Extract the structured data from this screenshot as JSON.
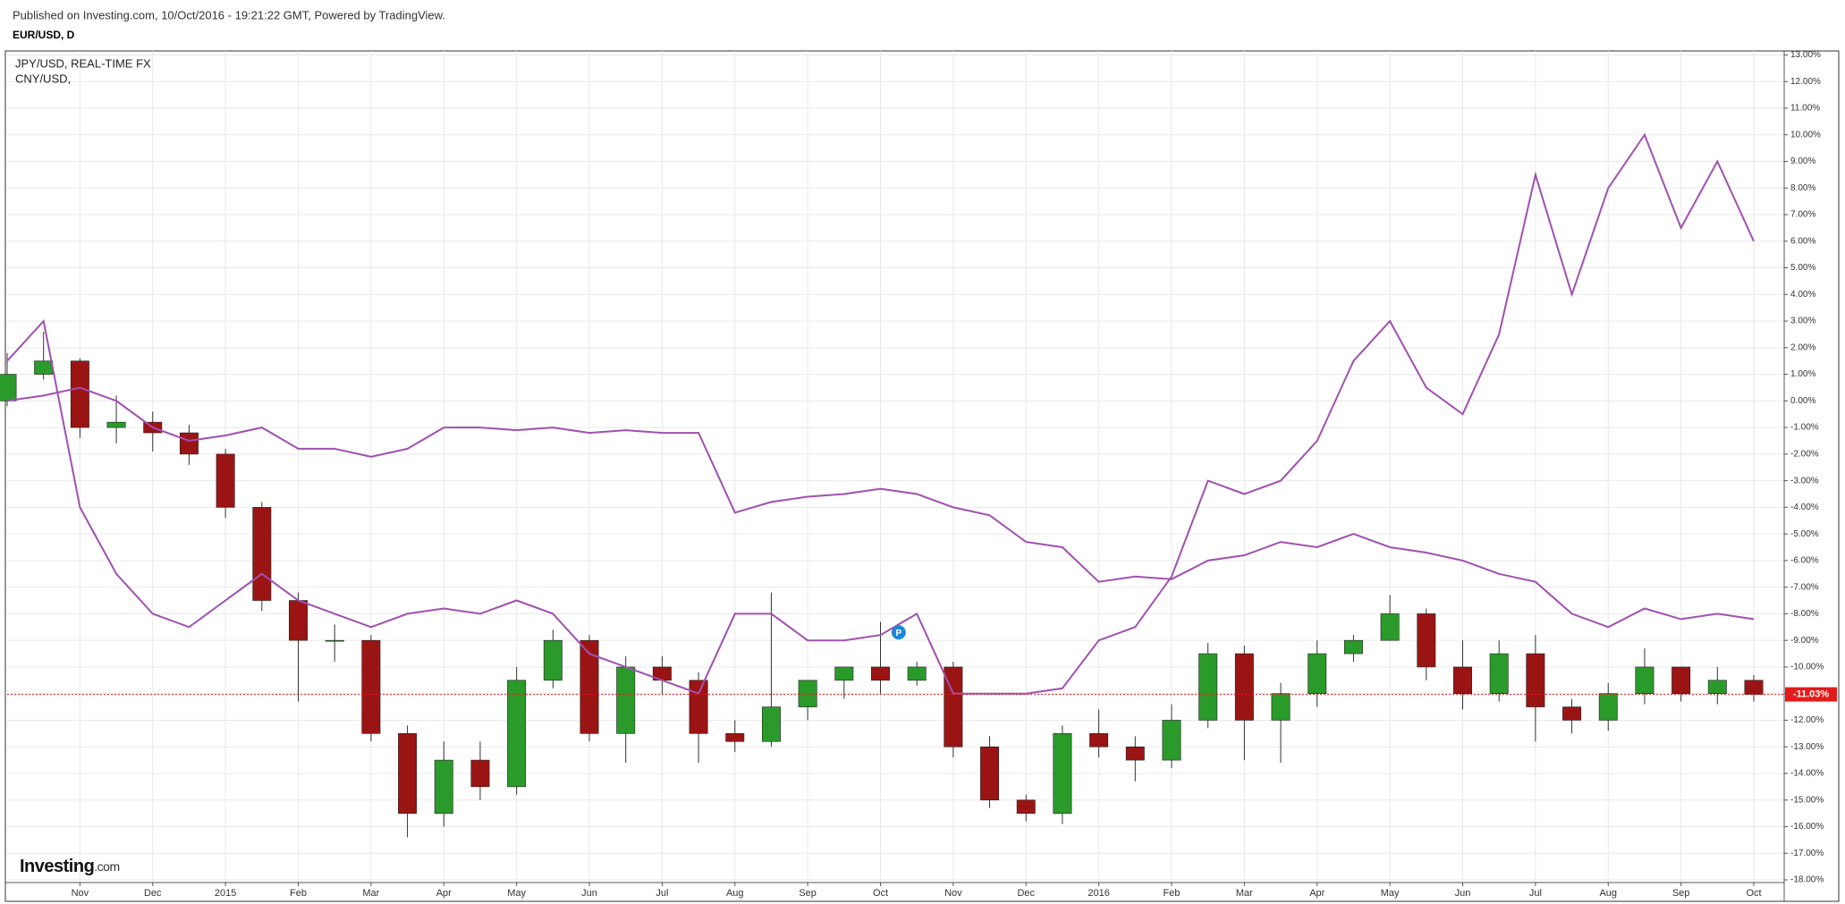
{
  "header": {
    "published": "Published on Investing.com, 10/Oct/2016 - 19:21:22 GMT, Powered by TradingView.",
    "symbol": "EUR/USD, D"
  },
  "logo": {
    "brand": "Investing",
    "suffix": ".com"
  },
  "marker": "P",
  "chart_data": {
    "type": "candlestick",
    "categories": [
      null,
      null,
      "Nov",
      null,
      "Dec",
      null,
      "2015",
      null,
      "Feb",
      null,
      "Mar",
      null,
      "Apr",
      null,
      "May",
      null,
      "Jun",
      null,
      "Jul",
      null,
      "Aug",
      null,
      "Sep",
      null,
      "Oct",
      null,
      "Nov",
      null,
      "Dec",
      null,
      "2016",
      null,
      "Feb",
      null,
      "Mar",
      null,
      "Apr",
      null,
      "May",
      null,
      "Jun",
      null,
      "Jul",
      null,
      "Aug",
      null,
      "Sep",
      null,
      "Oct"
    ],
    "candles": {
      "up_color": "#2a9a2a",
      "down_color": "#9b1414",
      "open": [
        0.0,
        1.0,
        1.5,
        -1.0,
        -0.8,
        -1.2,
        -2.0,
        -4.0,
        -7.5,
        -9.0,
        -9.0,
        -12.5,
        -15.5,
        -13.5,
        -14.5,
        -10.5,
        -9.0,
        -12.5,
        -10.0,
        -10.5,
        -12.5,
        -12.8,
        -11.5,
        -10.5,
        -10.0,
        -10.5,
        -10.0,
        -13.0,
        -15.0,
        -15.5,
        -12.5,
        -13.0,
        -13.5,
        -12.0,
        -9.5,
        -12.0,
        -11.0,
        -9.5,
        -9.0,
        -8.0,
        -10.0,
        -11.0,
        -9.5,
        -11.5,
        -12.0,
        -11.0,
        -10.0,
        -11.0,
        -10.5
      ],
      "high": [
        1.8,
        2.6,
        1.6,
        0.2,
        -0.4,
        -0.9,
        -1.8,
        -3.8,
        -7.2,
        -8.4,
        -8.8,
        -12.2,
        -12.8,
        -12.8,
        -10.0,
        -8.6,
        -8.8,
        -9.6,
        -9.6,
        -10.2,
        -12.0,
        -7.2,
        -10.8,
        -10.0,
        -8.3,
        -9.8,
        -9.8,
        -12.6,
        -14.8,
        -12.2,
        -11.6,
        -12.6,
        -11.4,
        -9.1,
        -9.2,
        -10.6,
        -9.0,
        -8.8,
        -7.3,
        -7.8,
        -9.0,
        -9.0,
        -8.8,
        -11.2,
        -10.6,
        -9.3,
        -10.2,
        -10.0,
        -10.3
      ],
      "low": [
        -0.2,
        0.8,
        -1.4,
        -1.6,
        -1.9,
        -2.4,
        -4.4,
        -7.9,
        -11.3,
        -9.8,
        -12.8,
        -16.4,
        -16.0,
        -15.0,
        -14.8,
        -10.8,
        -12.8,
        -13.6,
        -11.0,
        -13.6,
        -13.2,
        -13.0,
        -12.0,
        -11.2,
        -11.0,
        -10.7,
        -13.4,
        -15.3,
        -15.8,
        -15.9,
        -13.4,
        -14.3,
        -13.8,
        -12.3,
        -13.5,
        -13.6,
        -11.5,
        -9.8,
        -8.8,
        -10.5,
        -11.6,
        -11.3,
        -12.8,
        -12.5,
        -12.4,
        -11.4,
        -11.3,
        -11.4,
        -11.3
      ],
      "close": [
        1.0,
        1.5,
        -1.0,
        -0.8,
        -1.2,
        -2.0,
        -4.0,
        -7.5,
        -9.0,
        -9.0,
        -12.5,
        -15.5,
        -13.5,
        -14.5,
        -10.5,
        -9.0,
        -12.5,
        -10.0,
        -10.5,
        -12.5,
        -12.8,
        -11.5,
        -10.5,
        -10.0,
        -10.5,
        -10.0,
        -13.0,
        -15.0,
        -15.5,
        -12.5,
        -13.0,
        -13.5,
        -12.0,
        -9.5,
        -12.0,
        -11.0,
        -9.5,
        -9.0,
        -8.0,
        -10.0,
        -11.0,
        -9.5,
        -11.5,
        -12.0,
        -11.0,
        -10.0,
        -11.0,
        -10.5,
        -11.03
      ]
    },
    "series": [
      {
        "name": "JPY/USD, REAL-TIME FX",
        "color": "#a050b0",
        "values": [
          1.5,
          3.0,
          -4.0,
          -6.5,
          -8.0,
          -8.5,
          -7.5,
          -6.5,
          -7.5,
          -8.0,
          -8.5,
          -8.0,
          -7.8,
          -8.0,
          -7.5,
          -8.0,
          -9.5,
          -10.0,
          -10.5,
          -11.0,
          -8.0,
          -8.0,
          -9.0,
          -9.0,
          -8.8,
          -8.0,
          -11.0,
          -11.0,
          -11.0,
          -10.8,
          -9.0,
          -8.5,
          -6.6,
          -3.0,
          -3.5,
          -3.0,
          -1.5,
          1.5,
          3.0,
          0.5,
          -0.5,
          2.5,
          8.5,
          4.0,
          8.0,
          10.0,
          6.5,
          9.0,
          6.0
        ]
      },
      {
        "name": "CNY/USD,",
        "color": "#a050b0",
        "values": [
          0.0,
          0.2,
          0.5,
          0.0,
          -1.0,
          -1.5,
          -1.3,
          -1.0,
          -1.8,
          -1.8,
          -2.1,
          -1.8,
          -1.0,
          -1.0,
          -1.1,
          -1.0,
          -1.2,
          -1.1,
          -1.2,
          -1.2,
          -4.2,
          -3.8,
          -3.6,
          -3.5,
          -3.3,
          -3.5,
          -4.0,
          -4.3,
          -5.3,
          -5.5,
          -6.8,
          -6.6,
          -6.7,
          -6.0,
          -5.8,
          -5.3,
          -5.5,
          -5.0,
          -5.5,
          -5.7,
          -6.0,
          -6.5,
          -6.8,
          -8.0,
          -8.5,
          -7.8,
          -8.2,
          -8.0,
          -8.2
        ]
      }
    ],
    "last_value": {
      "value": -11.03,
      "label": "-11.03%",
      "color": "#e31b1b"
    },
    "ylim": [
      -18.1,
      13.15
    ],
    "yticks": [
      {
        "value": 13,
        "label": "13.00%"
      },
      {
        "value": 12,
        "label": "12.00%"
      },
      {
        "value": 11,
        "label": "11.00%"
      },
      {
        "value": 10,
        "label": "10.00%"
      },
      {
        "value": 9,
        "label": "9.00%"
      },
      {
        "value": 8,
        "label": "8.00%"
      },
      {
        "value": 7,
        "label": "7.00%"
      },
      {
        "value": 6,
        "label": "6.00%"
      },
      {
        "value": 5,
        "label": "5.00%"
      },
      {
        "value": 4,
        "label": "4.00%"
      },
      {
        "value": 3,
        "label": "3.00%"
      },
      {
        "value": 2,
        "label": "2.00%"
      },
      {
        "value": 1,
        "label": "1.00%"
      },
      {
        "value": 0,
        "label": "0.00%"
      },
      {
        "value": -1,
        "label": "-1.00%"
      },
      {
        "value": -2,
        "label": "-2.00%"
      },
      {
        "value": -3,
        "label": "-3.00%"
      },
      {
        "value": -4,
        "label": "-4.00%"
      },
      {
        "value": -5,
        "label": "-5.00%"
      },
      {
        "value": -6,
        "label": "-6.00%"
      },
      {
        "value": -7,
        "label": "-7.00%"
      },
      {
        "value": -8,
        "label": "-8.00%"
      },
      {
        "value": -9,
        "label": "-9.00%"
      },
      {
        "value": -10,
        "label": "-10.00%"
      },
      {
        "value": -11,
        "label": "-11.00%"
      },
      {
        "value": -12,
        "label": "-12.00%"
      },
      {
        "value": -13,
        "label": "-13.00%"
      },
      {
        "value": -14,
        "label": "-14.00%"
      },
      {
        "value": -15,
        "label": "-15.00%"
      },
      {
        "value": -16,
        "label": "-16.00%"
      },
      {
        "value": -17,
        "label": "-17.00%"
      },
      {
        "value": -18,
        "label": "-18.00%"
      }
    ],
    "grid": true
  }
}
